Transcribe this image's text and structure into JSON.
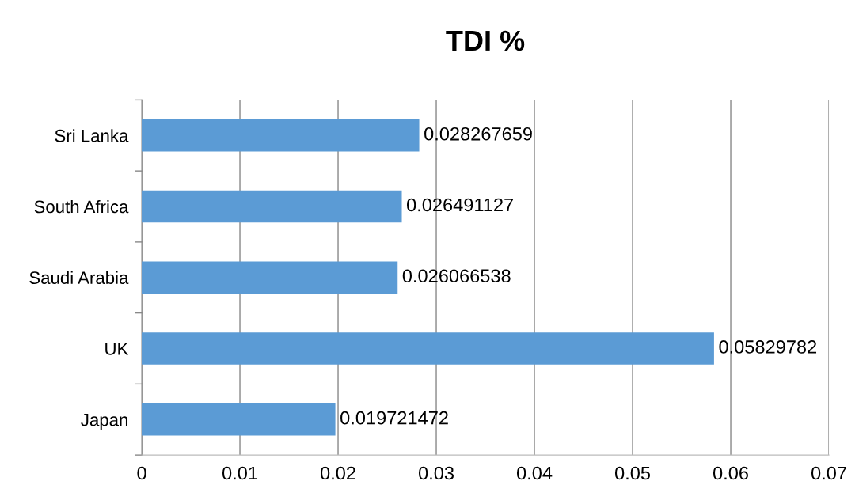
{
  "chart_data": {
    "type": "bar",
    "orientation": "horizontal",
    "title": "TDI %",
    "categories": [
      "Sri Lanka",
      "South Africa",
      "Saudi Arabia",
      "UK",
      "Japan"
    ],
    "values": [
      0.028267659,
      0.026491127,
      0.026066538,
      0.05829782,
      0.019721472
    ],
    "color": "#5b9bd5",
    "data_labels": true,
    "grid": "x",
    "xlim": [
      0,
      0.07
    ],
    "xticks": [
      0,
      0.01,
      0.02,
      0.03,
      0.04,
      0.05,
      0.06,
      0.07
    ]
  }
}
